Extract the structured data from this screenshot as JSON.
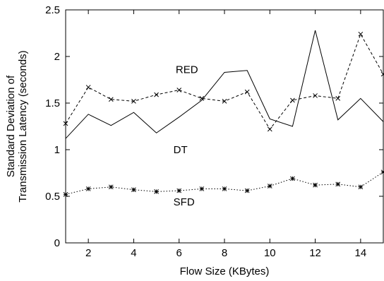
{
  "chart_data": {
    "type": "line",
    "xlabel": "Flow Size (KBytes)",
    "ylabel_lines": [
      "Standard Deviation of",
      "Transmission Latency (seconds)"
    ],
    "xlim": [
      1,
      15
    ],
    "ylim": [
      0,
      2.5
    ],
    "xticks": [
      2,
      4,
      6,
      8,
      10,
      12,
      14
    ],
    "yticks": [
      0,
      0.5,
      1,
      1.5,
      2,
      2.5
    ],
    "x": [
      1,
      2,
      3,
      4,
      5,
      6,
      7,
      8,
      9,
      10,
      11,
      12,
      13,
      14,
      15
    ],
    "series": [
      {
        "name": "RED",
        "style": "dashed",
        "marker": "x",
        "values": [
          1.28,
          1.67,
          1.54,
          1.52,
          1.59,
          1.64,
          1.55,
          1.52,
          1.62,
          1.22,
          1.53,
          1.58,
          1.55,
          2.24,
          1.81
        ],
        "label_at": [
          9.5,
          1.86
        ]
      },
      {
        "name": "DT",
        "style": "solid",
        "marker": "none",
        "values": [
          1.12,
          1.38,
          1.26,
          1.4,
          1.18,
          1.35,
          1.53,
          1.83,
          1.85,
          1.33,
          1.25,
          2.28,
          1.32,
          1.55,
          1.3
        ],
        "label_at": [
          9.4,
          1.0
        ]
      },
      {
        "name": "SFD",
        "style": "dotted",
        "marker": "star",
        "values": [
          0.52,
          0.58,
          0.6,
          0.57,
          0.55,
          0.56,
          0.58,
          0.58,
          0.56,
          0.61,
          0.69,
          0.62,
          0.63,
          0.6,
          0.76
        ],
        "label_at": [
          9.4,
          0.44
        ]
      }
    ]
  }
}
